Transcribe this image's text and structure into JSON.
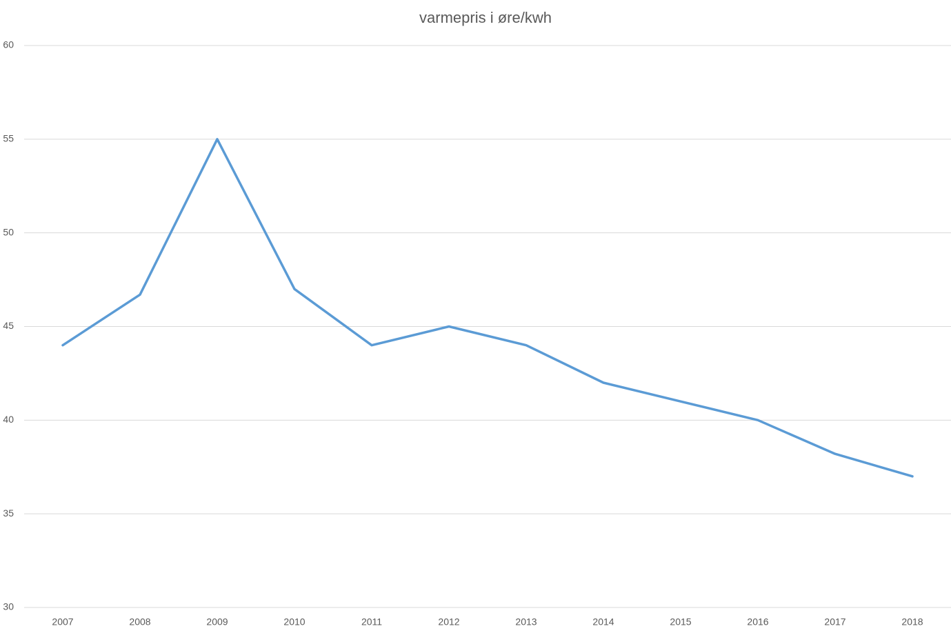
{
  "chart_data": {
    "type": "line",
    "title": "varmepris i øre/kwh",
    "categories": [
      "2007",
      "2008",
      "2009",
      "2010",
      "2011",
      "2012",
      "2013",
      "2014",
      "2015",
      "2016",
      "2017",
      "2018"
    ],
    "series": [
      {
        "name": "varmepris",
        "color": "#5b9bd5",
        "values": [
          44,
          46.7,
          55,
          47,
          44,
          45,
          44,
          42,
          41,
          40,
          38.2,
          37
        ]
      }
    ],
    "ylim": [
      30,
      60
    ],
    "yticks": [
      30,
      35,
      40,
      45,
      50,
      55,
      60
    ],
    "grid": true
  }
}
